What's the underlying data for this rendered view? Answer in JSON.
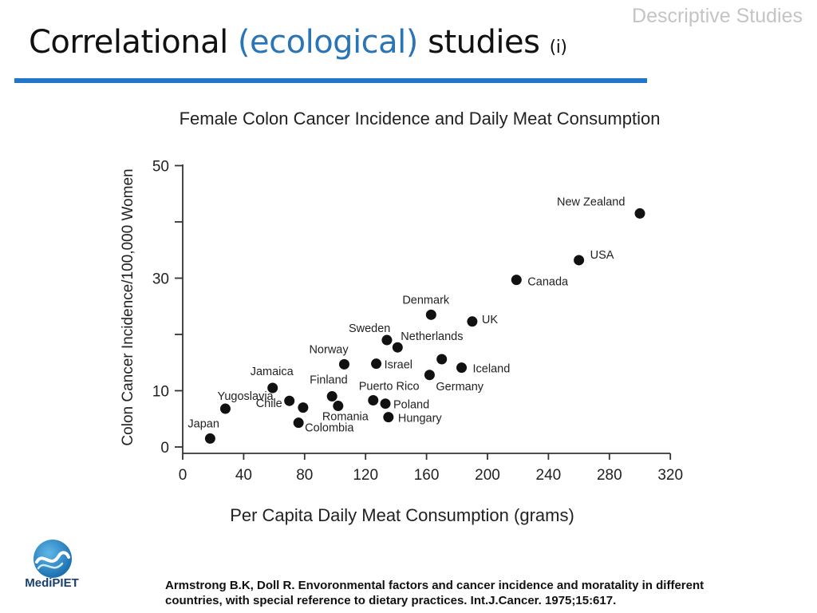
{
  "header": {
    "section_label": "Descriptive Studies",
    "title_part1": "Correlational ",
    "title_accent": "(ecological)",
    "title_part2": " studies ",
    "title_suffix": "(i)"
  },
  "colors": {
    "accent": "#2a74b8",
    "rule": "#2276c9",
    "marker": "#111111",
    "section_label": "#c4c4c4"
  },
  "chart_data": {
    "type": "scatter",
    "title": "Female Colon Cancer Incidence and Daily Meat Consumption",
    "xlabel": "Per Capita Daily Meat Consumption (grams)",
    "ylabel": "Colon Cancer Incidence/100,000 Women",
    "xlim": [
      0,
      340
    ],
    "ylim": [
      0,
      50
    ],
    "xticks": [
      0,
      40,
      80,
      120,
      160,
      200,
      240,
      280,
      320
    ],
    "yticks_labeled": [
      0,
      10,
      30,
      50
    ],
    "yticks_minor": [
      20,
      40
    ],
    "grid": false,
    "legend": "none",
    "points": [
      {
        "label": "Japan",
        "x": 18,
        "y": 1.5
      },
      {
        "label": "Yugoslavia",
        "x": 28,
        "y": 6.8
      },
      {
        "label": "Jamaica",
        "x": 59,
        "y": 10.5
      },
      {
        "label": "Chile",
        "x": 70,
        "y": 8.2
      },
      {
        "label": "",
        "x": 79,
        "y": 7
      },
      {
        "label": "Colombia",
        "x": 76,
        "y": 4.3
      },
      {
        "label": "Finland",
        "x": 98,
        "y": 9
      },
      {
        "label": "Romania",
        "x": 102,
        "y": 7.3
      },
      {
        "label": "Norway",
        "x": 106,
        "y": 14.7
      },
      {
        "label": "Israel",
        "x": 127,
        "y": 14.8
      },
      {
        "label": "Sweden",
        "x": 134,
        "y": 19
      },
      {
        "label": "Puerto Rico",
        "x": 125,
        "y": 8.3
      },
      {
        "label": "Poland",
        "x": 133,
        "y": 7.7
      },
      {
        "label": "Hungary",
        "x": 135,
        "y": 5.3
      },
      {
        "label": "Netherlands",
        "x": 141,
        "y": 17.7
      },
      {
        "label": "Denmark",
        "x": 163,
        "y": 23.5
      },
      {
        "label": "",
        "x": 170,
        "y": 15.6
      },
      {
        "label": "Germany",
        "x": 162,
        "y": 12.8
      },
      {
        "label": "Iceland",
        "x": 183,
        "y": 14.1
      },
      {
        "label": "UK",
        "x": 190,
        "y": 22.3
      },
      {
        "label": "Canada",
        "x": 219,
        "y": 29.7
      },
      {
        "label": "USA",
        "x": 260,
        "y": 33.2
      },
      {
        "label": "New Zealand",
        "x": 300,
        "y": 41.5
      }
    ]
  },
  "logo": {
    "text": "MediPIET"
  },
  "citation": {
    "line1": "Armstrong B.K, Doll R. Envoronmental factors and cancer incidence and moratality in different",
    "line2": "countries, with special reference to dietary practices. Int.J.Cancer. 1975;15:617."
  }
}
